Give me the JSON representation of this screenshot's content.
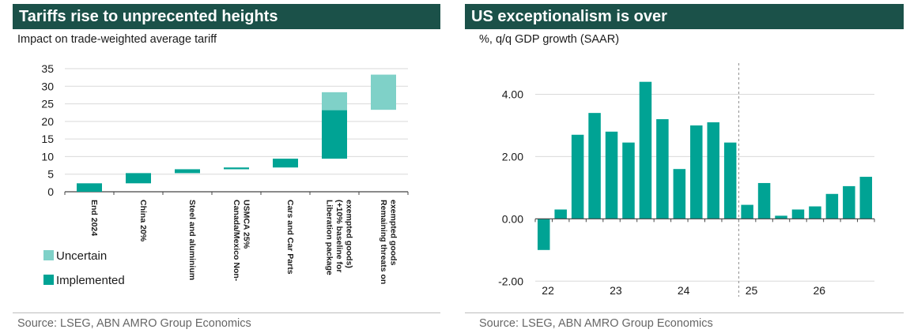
{
  "colors": {
    "header": "#1b5149",
    "implemented": "#00a394",
    "uncertain": "#7fd1c8",
    "grid": "#d9d9d9",
    "source": "#666666"
  },
  "left_chart": {
    "title": "Tariffs rise to unprecented heights",
    "subtitle": "Impact on trade-weighted average tariff",
    "source": "Source: LSEG, ABN AMRO Group Economics",
    "chart_data": {
      "type": "bar",
      "stacked": "waterfall",
      "categories": [
        [
          "End 2024"
        ],
        [
          "China 20%"
        ],
        [
          "Steel and aluminium"
        ],
        [
          "Canada/Mexico Non-",
          "USMCA 25%"
        ],
        [
          "Cars and Car Parts"
        ],
        [
          "Liberation package",
          "(+10% baseline for",
          "exempted goods)"
        ],
        [
          "Remaining threats on",
          "exempted goods"
        ]
      ],
      "series": [
        {
          "name": "Implemented",
          "ranges": [
            [
              0,
              2.4
            ],
            [
              2.4,
              5.3
            ],
            [
              5.3,
              6.4
            ],
            [
              6.4,
              6.9
            ],
            [
              6.9,
              9.4
            ],
            [
              9.4,
              23.2
            ],
            null
          ]
        },
        {
          "name": "Uncertain",
          "ranges": [
            null,
            null,
            null,
            null,
            null,
            [
              23.2,
              28.3
            ],
            [
              23.3,
              33.3
            ]
          ]
        }
      ],
      "yticks": [
        0,
        5,
        10,
        15,
        20,
        25,
        30,
        35
      ],
      "ylim": [
        0,
        35
      ],
      "grid": true,
      "legend_order": [
        "Uncertain",
        "Implemented"
      ],
      "legend_position": "bottom-left"
    }
  },
  "right_chart": {
    "title": "US exceptionalism is over",
    "subtitle": "%, q/q GDP growth (SAAR)",
    "source": "Source: LSEG, ABN AMRO Group Economics",
    "chart_data": {
      "type": "bar",
      "x_labels": [
        "22",
        "23",
        "24",
        "25",
        "26"
      ],
      "series": [
        {
          "values": [
            -1.0,
            0.3,
            2.7,
            3.4,
            2.8,
            2.45,
            4.4,
            3.2,
            1.6,
            3.0,
            3.1,
            2.45,
            0.45,
            1.15,
            0.1,
            0.3,
            0.4,
            0.8,
            1.05,
            1.35
          ]
        }
      ],
      "forecast_start_index": 12,
      "yticks": [
        "-2.00",
        "0.00",
        "2.00",
        "4.00"
      ],
      "ylim": [
        -2.5,
        5.0
      ],
      "grid": true
    }
  }
}
